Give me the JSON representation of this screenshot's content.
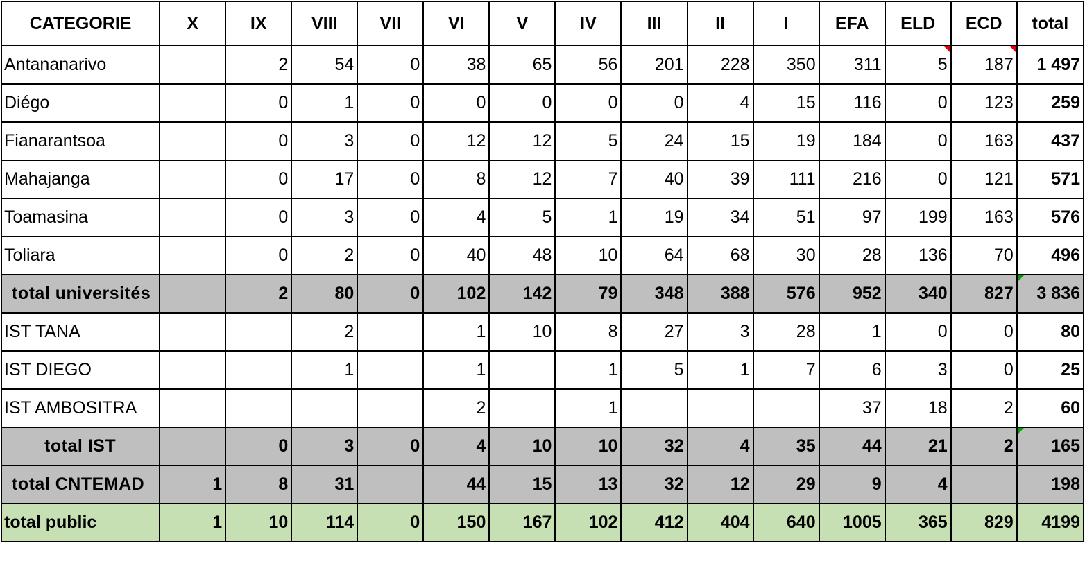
{
  "columns": [
    "CATEGORIE",
    "X",
    "IX",
    "VIII",
    "VII",
    "VI",
    "V",
    "IV",
    "III",
    "II",
    "I",
    "EFA",
    "ELD",
    "ECD",
    "total"
  ],
  "rows": [
    {
      "type": "normal",
      "label": "Antananarivo",
      "cells": [
        "",
        "2",
        "54",
        "0",
        "38",
        "65",
        "56",
        "201",
        "228",
        "350",
        "311",
        "5",
        "187"
      ],
      "total": "1 497"
    },
    {
      "type": "normal",
      "label": "Diégo",
      "cells": [
        "",
        "0",
        "1",
        "0",
        "0",
        "0",
        "0",
        "0",
        "4",
        "15",
        "116",
        "0",
        "123"
      ],
      "total": "259"
    },
    {
      "type": "normal",
      "label": "Fianarantsoa",
      "cells": [
        "",
        "0",
        "3",
        "0",
        "12",
        "12",
        "5",
        "24",
        "15",
        "19",
        "184",
        "0",
        "163"
      ],
      "total": "437"
    },
    {
      "type": "normal",
      "label": "Mahajanga",
      "cells": [
        "",
        "0",
        "17",
        "0",
        "8",
        "12",
        "7",
        "40",
        "39",
        "111",
        "216",
        "0",
        "121"
      ],
      "total": "571"
    },
    {
      "type": "normal",
      "label": "Toamasina",
      "cells": [
        "",
        "0",
        "3",
        "0",
        "4",
        "5",
        "1",
        "19",
        "34",
        "51",
        "97",
        "199",
        "163"
      ],
      "total": "576"
    },
    {
      "type": "normal",
      "label": "Toliara",
      "cells": [
        "",
        "0",
        "2",
        "0",
        "40",
        "48",
        "10",
        "64",
        "68",
        "30",
        "28",
        "136",
        "70"
      ],
      "total": "496"
    },
    {
      "type": "sub-left",
      "label": "total universités",
      "cells": [
        "",
        "2",
        "80",
        "0",
        "102",
        "142",
        "79",
        "348",
        "388",
        "576",
        "952",
        "340",
        "827"
      ],
      "total": "3 836"
    },
    {
      "type": "normal",
      "label": "IST TANA",
      "cells": [
        "",
        "",
        "2",
        "",
        "1",
        "10",
        "8",
        "27",
        "3",
        "28",
        "1",
        "0",
        "0"
      ],
      "total": "80"
    },
    {
      "type": "normal",
      "label": "IST DIEGO",
      "cells": [
        "",
        "",
        "1",
        "",
        "1",
        "",
        "1",
        "5",
        "1",
        "7",
        "6",
        "3",
        "0"
      ],
      "total": "25"
    },
    {
      "type": "normal",
      "label": "IST AMBOSITRA",
      "cells": [
        "",
        "",
        "",
        "",
        "2",
        "",
        "1",
        "",
        "",
        "",
        "37",
        "18",
        "2"
      ],
      "total": "60"
    },
    {
      "type": "sub",
      "label": "total IST",
      "cells": [
        "",
        "0",
        "3",
        "0",
        "4",
        "10",
        "10",
        "32",
        "4",
        "35",
        "44",
        "21",
        "2"
      ],
      "total": "165"
    },
    {
      "type": "sub-left",
      "label": "total  CNTEMAD",
      "cells": [
        "1",
        "8",
        "31",
        "",
        "44",
        "15",
        "13",
        "32",
        "12",
        "29",
        "9",
        "4",
        ""
      ],
      "total": "198"
    },
    {
      "type": "grand",
      "label": "total public",
      "cells": [
        "1",
        "10",
        "114",
        "0",
        "150",
        "167",
        "102",
        "412",
        "404",
        "640",
        "1005",
        "365",
        "829"
      ],
      "total": "4199"
    }
  ],
  "colors": {
    "subtotal_bg": "#bfbfbf",
    "grand_total_bg": "#c6e0b4",
    "comment_marker_red": "#e00000",
    "comment_marker_green": "#00a000"
  }
}
